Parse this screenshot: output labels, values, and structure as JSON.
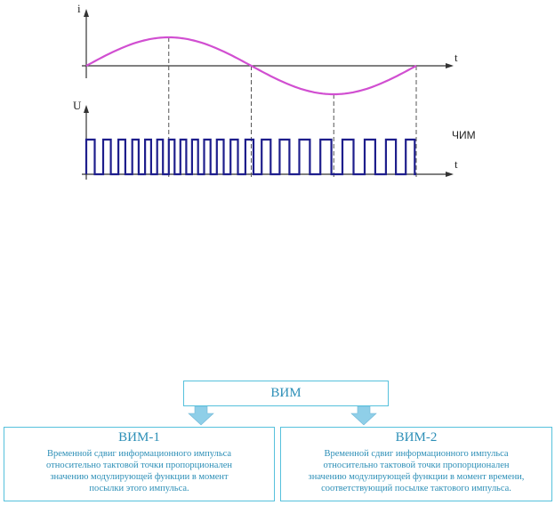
{
  "figure": {
    "current_axis_label": "i",
    "voltage_axis_label": "U",
    "time_label_top": "t",
    "time_label_bottom": "t",
    "modulation_label": "ЧИМ",
    "colors": {
      "current_curve": "#d14fd1",
      "pulse_train": "#1e1e8c",
      "axis": "#333333",
      "guide_lines": "#555555"
    }
  },
  "tree": {
    "root": {
      "label": "ВИМ"
    },
    "left": {
      "title": "ВИМ-1",
      "lines": [
        "Временной сдвиг информационного импульса",
        "относительно тактовой точки пропорционален",
        "значению модулирующей функции в момент",
        "посылки этого импульса."
      ]
    },
    "right": {
      "title": "ВИМ-2",
      "lines": [
        "Временной сдвиг информационного импульса",
        "относительно тактовой точки пропорционален",
        "значению модулирующей функции в момент времени,",
        "соответствующий посылке тактового импульса."
      ]
    },
    "colors": {
      "border": "#56c1dc",
      "text": "#2d8fb7",
      "arrow": "#8fcfe8"
    }
  }
}
